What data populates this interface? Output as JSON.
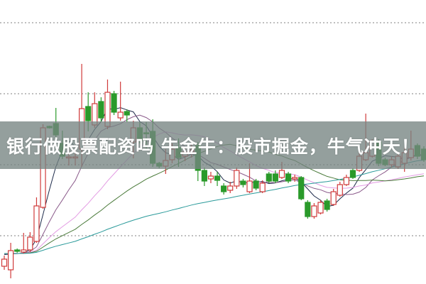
{
  "title": "银行做股票配资吗 牛金牛：股市掘金，牛气冲天！",
  "chart_data": {
    "type": "candlestick",
    "title": "",
    "xlabel": "",
    "ylabel": "",
    "ylim": [
      -0.68,
      3.32
    ],
    "gridlines": [
      0,
      1,
      2,
      3
    ],
    "grid": "horizontal dotted",
    "up_color": "#d03a3a",
    "down_color": "#2a9a2a",
    "moving_averages": [
      {
        "period": 5,
        "color": "#1d2a4a"
      },
      {
        "period": 10,
        "color": "#8a5a8a"
      },
      {
        "period": 20,
        "color": "#e39be3"
      },
      {
        "period": 30,
        "color": "#4a7a3a"
      },
      {
        "period": 60,
        "color": "#2a9a9a"
      }
    ],
    "candles_ochl_note_order": [
      "open",
      "close",
      "high",
      "low"
    ],
    "candles": [
      [
        -0.43,
        -0.33,
        -0.28,
        -0.48
      ],
      [
        -0.48,
        -0.21,
        -0.1,
        -0.6
      ],
      [
        -0.2,
        -0.22,
        -0.18,
        -0.24
      ],
      [
        -0.23,
        -0.2,
        0.04,
        -0.25
      ],
      [
        -0.2,
        -0.02,
        0.05,
        -0.23
      ],
      [
        -0.08,
        0.42,
        0.54,
        -0.1
      ],
      [
        0.4,
        1.52,
        1.57,
        0.38
      ],
      [
        1.54,
        1.52,
        1.55,
        1.51
      ],
      [
        1.58,
        1.42,
        1.8,
        1.27
      ],
      [
        1.3,
        1.12,
        1.48,
        1.08
      ],
      [
        1.1,
        1.11,
        1.24,
        0.99
      ],
      [
        1.1,
        1.11,
        1.22,
        0.99
      ],
      [
        1.22,
        1.79,
        2.42,
        0.97
      ],
      [
        1.82,
        1.62,
        2.02,
        1.47
      ],
      [
        1.56,
        1.86,
        2.02,
        1.52
      ],
      [
        1.89,
        1.66,
        1.95,
        1.6
      ],
      [
        1.54,
        2.02,
        2.2,
        1.5
      ],
      [
        2.0,
        1.74,
        2.04,
        1.7
      ],
      [
        1.66,
        1.74,
        2.17,
        1.62
      ],
      [
        1.75,
        1.7,
        1.78,
        1.6
      ],
      [
        1.32,
        1.52,
        1.62,
        1.09
      ],
      [
        1.52,
        1.34,
        1.6,
        1.3
      ],
      [
        1.45,
        1.44,
        1.6,
        1.2
      ],
      [
        1.47,
        1.02,
        1.64,
        0.97
      ],
      [
        1.02,
        0.98,
        1.04,
        0.95
      ],
      [
        0.98,
        1.06,
        1.22,
        0.87
      ],
      [
        1.07,
        1.22,
        1.3,
        1.02
      ],
      [
        1.24,
        1.1,
        1.37,
        0.97
      ],
      [
        1.12,
        1.18,
        1.25,
        1.05
      ],
      [
        1.18,
        1.2,
        1.28,
        1.1
      ],
      [
        1.27,
        0.92,
        1.32,
        0.77
      ],
      [
        0.92,
        0.77,
        0.96,
        0.7
      ],
      [
        0.8,
        0.84,
        0.9,
        0.74
      ],
      [
        0.84,
        0.78,
        0.9,
        0.7
      ],
      [
        0.7,
        0.62,
        0.74,
        0.58
      ],
      [
        0.64,
        0.7,
        0.76,
        0.6
      ],
      [
        0.7,
        0.92,
        0.96,
        0.66
      ],
      [
        0.77,
        0.72,
        0.8,
        0.68
      ],
      [
        0.62,
        0.77,
        1.02,
        0.6
      ],
      [
        0.77,
        0.67,
        0.8,
        0.64
      ],
      [
        0.62,
        0.74,
        0.78,
        0.6
      ],
      [
        0.87,
        0.77,
        0.9,
        0.74
      ],
      [
        0.87,
        0.77,
        0.92,
        0.74
      ],
      [
        0.82,
        0.92,
        1.04,
        0.8
      ],
      [
        0.87,
        0.77,
        0.9,
        0.74
      ],
      [
        0.8,
        0.82,
        0.86,
        0.76
      ],
      [
        0.82,
        0.52,
        0.84,
        0.5
      ],
      [
        0.47,
        0.27,
        0.5,
        0.24
      ],
      [
        0.27,
        0.42,
        0.46,
        0.24
      ],
      [
        0.32,
        0.47,
        0.5,
        0.3
      ],
      [
        0.49,
        0.37,
        0.52,
        0.34
      ],
      [
        0.44,
        0.62,
        0.66,
        0.42
      ],
      [
        0.57,
        0.72,
        0.76,
        0.55
      ],
      [
        0.72,
        0.82,
        0.86,
        0.7
      ],
      [
        0.92,
        0.82,
        0.95,
        0.8
      ],
      [
        0.92,
        1.12,
        1.18,
        0.9
      ],
      [
        1.07,
        1.17,
        1.72,
        1.05
      ],
      [
        1.12,
        1.32,
        1.36,
        1.1
      ],
      [
        1.32,
        1.02,
        1.36,
        0.98
      ],
      [
        1.07,
        1.0,
        1.1,
        0.98
      ],
      [
        1.0,
        1.07,
        1.12,
        0.96
      ],
      [
        0.97,
        1.12,
        1.18,
        0.94
      ],
      [
        1.02,
        1.17,
        1.24,
        0.9
      ],
      [
        1.1,
        1.22,
        1.48,
        1.06
      ],
      [
        1.27,
        1.12,
        1.3,
        1.08
      ],
      [
        1.22,
        1.07,
        1.26,
        1.04
      ]
    ]
  }
}
